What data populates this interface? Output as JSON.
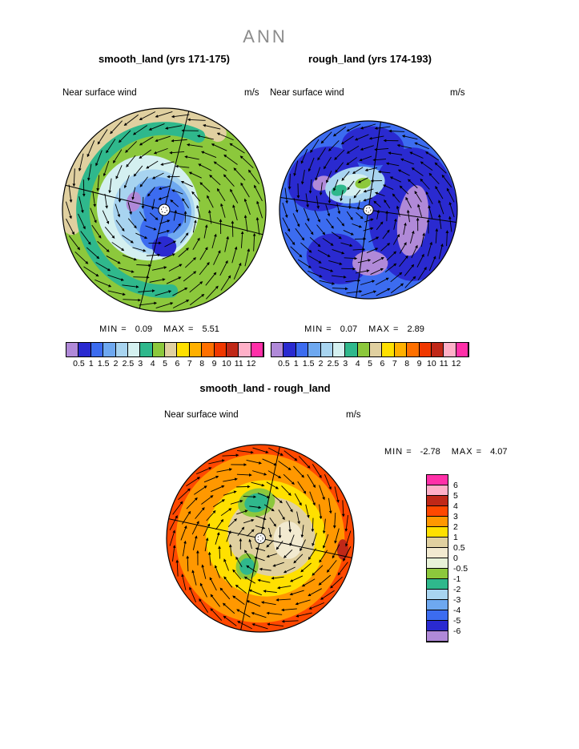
{
  "figure": {
    "title": "ANN"
  },
  "panels": {
    "smooth": {
      "title": "smooth_land (yrs 171-175)",
      "variable": "Near surface wind",
      "units": "m/s",
      "min_label": "MIN =",
      "min_value": "0.09",
      "max_label": "MAX =",
      "max_value": "5.51"
    },
    "rough": {
      "title": "rough_land (yrs 174-193)",
      "variable": "Near surface wind",
      "units": "m/s",
      "min_label": "MIN =",
      "min_value": "0.07",
      "max_label": "MAX =",
      "max_value": "2.89"
    },
    "diff": {
      "title": "smooth_land - rough_land",
      "variable": "Near surface wind",
      "units": "m/s",
      "min_label": "MIN =",
      "min_value": "-2.78",
      "max_label": "MAX =",
      "max_value": "4.07"
    }
  },
  "chart_data": [
    {
      "id": "smooth_land",
      "type": "heatmap",
      "subtype": "polar_contour_with_wind_vectors",
      "title": "smooth_land (yrs 171-175)",
      "variable": "Near surface wind",
      "units": "m/s",
      "projection": "polar stereographic",
      "stats": {
        "min": 0.09,
        "max": 5.51
      },
      "colorbar": {
        "orientation": "horizontal",
        "tick_labels": [
          "0.5",
          "1",
          "1.5",
          "2",
          "2.5",
          "3",
          "4",
          "5",
          "6",
          "7",
          "8",
          "9",
          "10",
          "11",
          "12"
        ],
        "colors": [
          "#b089d8",
          "#2a2ad0",
          "#3c6cf0",
          "#6ea8f0",
          "#a8d4f0",
          "#d4f0f0",
          "#2fb88c",
          "#8cc83c",
          "#e0d0a0",
          "#ffe000",
          "#ffb000",
          "#ff7000",
          "#f03800",
          "#c02818",
          "#ffb0c8",
          "#ff30a8"
        ]
      },
      "vector_field": {
        "circulation": "counterclockwise",
        "pattern": "cyclonic spiral around pole"
      },
      "contour_regions": [
        {
          "range_m_s": "5-6",
          "where": "tan band along northwest rim"
        },
        {
          "range_m_s": "4-5",
          "where": "yellow-green outer ring (dominant)"
        },
        {
          "range_m_s": "3-4",
          "where": "teal ring along west and south"
        },
        {
          "range_m_s": "1.5-3",
          "where": "pale blue-cyan area center-left"
        },
        {
          "range_m_s": "1-1.5",
          "where": "blue area around pole"
        },
        {
          "range_m_s": "0.5-1",
          "where": "dark blue blob south of pole"
        },
        {
          "range_m_s": "<0.5",
          "where": "small purple spot west of pole"
        }
      ]
    },
    {
      "id": "rough_land",
      "type": "heatmap",
      "subtype": "polar_contour_with_wind_vectors",
      "title": "rough_land (yrs 174-193)",
      "variable": "Near surface wind",
      "units": "m/s",
      "projection": "polar stereographic",
      "stats": {
        "min": 0.07,
        "max": 2.89
      },
      "colorbar": {
        "orientation": "horizontal",
        "tick_labels": [
          "0.5",
          "1",
          "1.5",
          "2",
          "2.5",
          "3",
          "4",
          "5",
          "6",
          "7",
          "8",
          "9",
          "10",
          "11",
          "12"
        ],
        "colors": [
          "#b089d8",
          "#2a2ad0",
          "#3c6cf0",
          "#6ea8f0",
          "#a8d4f0",
          "#d4f0f0",
          "#2fb88c",
          "#8cc83c",
          "#e0d0a0",
          "#ffe000",
          "#ffb000",
          "#ff7000",
          "#f03800",
          "#c02818",
          "#ffb0c8",
          "#ff30a8"
        ]
      },
      "vector_field": {
        "circulation": "counterclockwise",
        "pattern": "cyclonic spiral around pole"
      },
      "contour_regions": [
        {
          "range_m_s": "2-3",
          "where": "pale patch northwest of pole with small green/teal cores"
        },
        {
          "range_m_s": "1-1.5",
          "where": "blue background over much of disk"
        },
        {
          "range_m_s": "0.5-1",
          "where": "large dark blue areas east, northwest and south"
        },
        {
          "range_m_s": "<0.5",
          "where": "purple blobs east of pole, south edge and northwest"
        }
      ]
    },
    {
      "id": "difference",
      "type": "heatmap",
      "subtype": "polar_contour_with_wind_vectors",
      "title": "smooth_land - rough_land",
      "variable": "Near surface wind",
      "units": "m/s",
      "projection": "polar stereographic",
      "stats": {
        "min": -2.78,
        "max": 4.07
      },
      "colorbar": {
        "orientation": "vertical",
        "tick_labels": [
          "6",
          "5",
          "4",
          "3",
          "2",
          "1",
          "0.5",
          "0",
          "-0.5",
          "-1",
          "-2",
          "-3",
          "-4",
          "-5",
          "-6"
        ],
        "colors": [
          "#ff30a8",
          "#ffb0c8",
          "#c02818",
          "#ff4800",
          "#ff9800",
          "#ffe000",
          "#e0d0a0",
          "#f2ead0",
          "#e8f2d8",
          "#8cc83c",
          "#2fb88c",
          "#a8d4f0",
          "#6ea8f0",
          "#3c6cf0",
          "#2a2ad0",
          "#b089d8"
        ]
      },
      "vector_field": {
        "circulation": "clockwise",
        "pattern": "anticyclonic spiral around pole"
      },
      "contour_regions": [
        {
          "range_m_s": "4-5",
          "where": "small red spot at east rim"
        },
        {
          "range_m_s": "3-4",
          "where": "red-orange outer rim ring"
        },
        {
          "range_m_s": "2-3",
          "where": "broad orange ring (dominant)"
        },
        {
          "range_m_s": "1-2",
          "where": "yellow ring inside"
        },
        {
          "range_m_s": "0.5-1",
          "where": "tan inner area around pole"
        },
        {
          "range_m_s": "0-0.5",
          "where": "pale patch east of pole"
        },
        {
          "range_m_s": "-0.5 to -2",
          "where": "green/teal blobs north and southwest of pole"
        }
      ]
    }
  ]
}
